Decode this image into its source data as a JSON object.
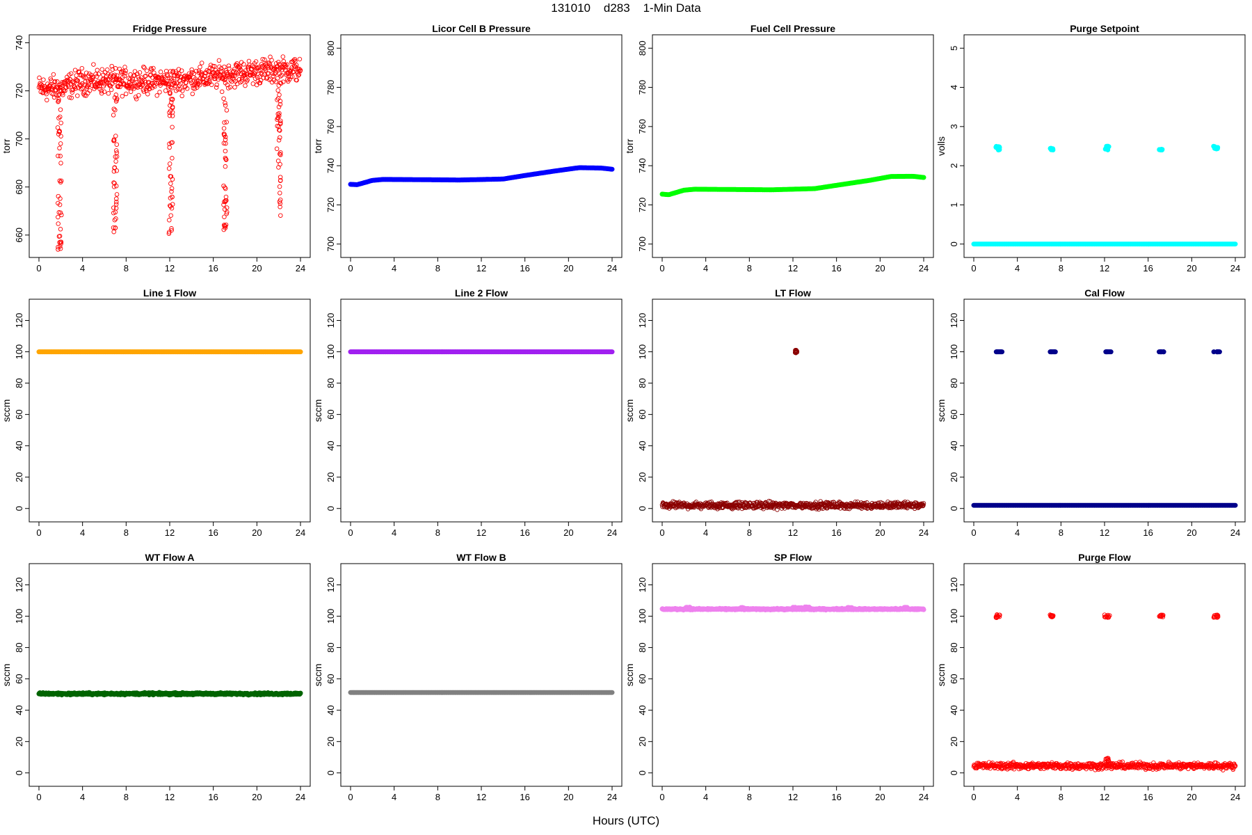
{
  "page": {
    "title": "131010    d283    1-Min Data",
    "xlabel": "Hours (UTC)"
  },
  "chart_data": [
    {
      "type": "scatter",
      "title": "Fridge Pressure",
      "ylabel": "torr",
      "xlabel": "Hours (UTC)",
      "xlim": [
        0,
        24
      ],
      "xticks": [
        0,
        4,
        8,
        12,
        16,
        20,
        24
      ],
      "ylim": [
        653,
        741
      ],
      "yticks": [
        660,
        680,
        700,
        720,
        740
      ],
      "color": "#ff0000",
      "marker": "open-circle",
      "series": [
        {
          "baseline": [
            [
              0,
              721
            ],
            [
              2,
              721
            ],
            [
              4,
              724
            ],
            [
              8,
              724
            ],
            [
              12,
              724
            ],
            [
              16,
              726
            ],
            [
              20,
              728
            ],
            [
              24,
              729
            ]
          ],
          "noise": 5
        }
      ],
      "dips": [
        {
          "x": 1.9,
          "min": 654
        },
        {
          "x": 7.0,
          "min": 659
        },
        {
          "x": 12.1,
          "min": 660
        },
        {
          "x": 17.1,
          "min": 662
        },
        {
          "x": 22.0,
          "min": 665
        }
      ]
    },
    {
      "type": "scatter",
      "title": "Licor Cell B Pressure",
      "ylabel": "torr",
      "xlabel": "Hours (UTC)",
      "xlim": [
        0,
        24
      ],
      "xticks": [
        0,
        4,
        8,
        12,
        16,
        20,
        24
      ],
      "ylim": [
        696,
        804
      ],
      "yticks": [
        700,
        720,
        740,
        760,
        780,
        800
      ],
      "color": "#0000ff",
      "marker": "filled-circle",
      "series": [
        {
          "baseline": [
            [
              0,
              730.5
            ],
            [
              0.6,
              730.3
            ],
            [
              2,
              732.5
            ],
            [
              3,
              733
            ],
            [
              8,
              732.8
            ],
            [
              10,
              732.7
            ],
            [
              14,
              733.2
            ],
            [
              16,
              735
            ],
            [
              19,
              737.5
            ],
            [
              21,
              739
            ],
            [
              23,
              738.8
            ],
            [
              24,
              738.2
            ]
          ],
          "noise": 0
        }
      ]
    },
    {
      "type": "scatter",
      "title": "Fuel Cell Pressure",
      "ylabel": "torr",
      "xlabel": "Hours (UTC)",
      "xlim": [
        0,
        24
      ],
      "xticks": [
        0,
        4,
        8,
        12,
        16,
        20,
        24
      ],
      "ylim": [
        696,
        804
      ],
      "yticks": [
        700,
        720,
        740,
        760,
        780,
        800
      ],
      "color": "#00ff00",
      "marker": "filled-circle",
      "series": [
        {
          "baseline": [
            [
              0,
              725.5
            ],
            [
              0.6,
              725.2
            ],
            [
              2,
              727.5
            ],
            [
              3,
              728
            ],
            [
              8,
              727.8
            ],
            [
              10,
              727.7
            ],
            [
              14,
              728.3
            ],
            [
              16,
              730
            ],
            [
              19,
              732.5
            ],
            [
              21,
              734.5
            ],
            [
              23,
              734.6
            ],
            [
              24,
              734
            ]
          ],
          "noise": 0
        }
      ]
    },
    {
      "type": "scatter",
      "title": "Purge Setpoint",
      "ylabel": "volls",
      "xlabel": "Hours (UTC)",
      "xlim": [
        0,
        24
      ],
      "xticks": [
        0,
        4,
        8,
        12,
        16,
        20,
        24
      ],
      "ylim": [
        -0.2,
        5.2
      ],
      "yticks": [
        0,
        1,
        2,
        3,
        4,
        5
      ],
      "color": "#00ffff",
      "marker": "filled-circle",
      "series": [
        {
          "baseline": [
            [
              0,
              0
            ],
            [
              24,
              0
            ]
          ],
          "noise": 0
        }
      ],
      "clusters": [
        {
          "x0": 2.0,
          "x1": 2.4,
          "y0": 2.4,
          "y1": 2.5
        },
        {
          "x0": 7.0,
          "x1": 7.3,
          "y0": 2.4,
          "y1": 2.45
        },
        {
          "x0": 12.0,
          "x1": 12.4,
          "y0": 2.4,
          "y1": 2.5
        },
        {
          "x0": 17.0,
          "x1": 17.3,
          "y0": 2.4,
          "y1": 2.42
        },
        {
          "x0": 22.0,
          "x1": 22.4,
          "y0": 2.4,
          "y1": 2.5
        }
      ]
    },
    {
      "type": "scatter",
      "title": "Line 1 Flow",
      "ylabel": "sccm",
      "xlabel": "Hours (UTC)",
      "xlim": [
        0,
        24
      ],
      "xticks": [
        0,
        4,
        8,
        12,
        16,
        20,
        24
      ],
      "ylim": [
        -5,
        130
      ],
      "yticks": [
        0,
        20,
        40,
        60,
        80,
        100,
        120
      ],
      "color": "#ffa500",
      "marker": "filled-circle",
      "series": [
        {
          "baseline": [
            [
              0,
              100
            ],
            [
              24,
              100
            ]
          ],
          "noise": 0
        }
      ]
    },
    {
      "type": "scatter",
      "title": "Line 2 Flow",
      "ylabel": "sccm",
      "xlabel": "Hours (UTC)",
      "xlim": [
        0,
        24
      ],
      "xticks": [
        0,
        4,
        8,
        12,
        16,
        20,
        24
      ],
      "ylim": [
        -5,
        130
      ],
      "yticks": [
        0,
        20,
        40,
        60,
        80,
        100,
        120
      ],
      "color": "#a020f0",
      "marker": "filled-circle",
      "series": [
        {
          "baseline": [
            [
              0,
              100
            ],
            [
              24,
              100
            ]
          ],
          "noise": 0
        }
      ]
    },
    {
      "type": "scatter",
      "title": "LT Flow",
      "ylabel": "sccm",
      "xlabel": "Hours (UTC)",
      "xlim": [
        0,
        24
      ],
      "xticks": [
        0,
        4,
        8,
        12,
        16,
        20,
        24
      ],
      "ylim": [
        -5,
        130
      ],
      "yticks": [
        0,
        20,
        40,
        60,
        80,
        100,
        120
      ],
      "color": "#8b0000",
      "marker": "open-circle",
      "series": [
        {
          "baseline": [
            [
              0,
              2
            ],
            [
              24,
              2
            ]
          ],
          "noise": 2
        }
      ],
      "clusters": [
        {
          "x0": 12.2,
          "x1": 12.4,
          "y0": 99,
          "y1": 101
        }
      ]
    },
    {
      "type": "scatter",
      "title": "Cal Flow",
      "ylabel": "sccm",
      "xlabel": "Hours (UTC)",
      "xlim": [
        0,
        24
      ],
      "xticks": [
        0,
        4,
        8,
        12,
        16,
        20,
        24
      ],
      "ylim": [
        -5,
        130
      ],
      "yticks": [
        0,
        20,
        40,
        60,
        80,
        100,
        120
      ],
      "color": "#00008b",
      "marker": "filled-circle",
      "series": [
        {
          "baseline": [
            [
              0,
              2
            ],
            [
              24,
              2
            ]
          ],
          "noise": 0
        }
      ],
      "clusters": [
        {
          "x0": 2.0,
          "x1": 2.6,
          "y0": 100,
          "y1": 100
        },
        {
          "x0": 7.0,
          "x1": 7.5,
          "y0": 100,
          "y1": 100
        },
        {
          "x0": 12.0,
          "x1": 12.6,
          "y0": 100,
          "y1": 100
        },
        {
          "x0": 17.0,
          "x1": 17.5,
          "y0": 100,
          "y1": 100
        },
        {
          "x0": 22.0,
          "x1": 22.6,
          "y0": 100,
          "y1": 100
        }
      ]
    },
    {
      "type": "scatter",
      "title": "WT Flow A",
      "ylabel": "sccm",
      "xlabel": "Hours (UTC)",
      "xlim": [
        0,
        24
      ],
      "xticks": [
        0,
        4,
        8,
        12,
        16,
        20,
        24
      ],
      "ylim": [
        -5,
        130
      ],
      "yticks": [
        0,
        20,
        40,
        60,
        80,
        100,
        120
      ],
      "color": "#006400",
      "marker": "filled-circle",
      "series": [
        {
          "baseline": [
            [
              0,
              50.5
            ],
            [
              24,
              50.5
            ]
          ],
          "noise": 0.6
        }
      ]
    },
    {
      "type": "scatter",
      "title": "WT Flow B",
      "ylabel": "sccm",
      "xlabel": "Hours (UTC)",
      "xlim": [
        0,
        24
      ],
      "xticks": [
        0,
        4,
        8,
        12,
        16,
        20,
        24
      ],
      "ylim": [
        -5,
        130
      ],
      "yticks": [
        0,
        20,
        40,
        60,
        80,
        100,
        120
      ],
      "color": "#808080",
      "marker": "filled-circle",
      "series": [
        {
          "baseline": [
            [
              0,
              51.3
            ],
            [
              24,
              51.3
            ]
          ],
          "noise": 0
        }
      ]
    },
    {
      "type": "scatter",
      "title": "SP Flow",
      "ylabel": "sccm",
      "xlabel": "Hours (UTC)",
      "xlim": [
        0,
        24
      ],
      "xticks": [
        0,
        4,
        8,
        12,
        16,
        20,
        24
      ],
      "ylim": [
        -5,
        130
      ],
      "yticks": [
        0,
        20,
        40,
        60,
        80,
        100,
        120
      ],
      "color": "#ee82ee",
      "marker": "filled-circle",
      "series": [
        {
          "baseline": [
            [
              0,
              104.5
            ],
            [
              24,
              104.5
            ]
          ],
          "noise": 0.4
        }
      ],
      "clusters": [
        {
          "x0": 2.1,
          "x1": 2.6,
          "y0": 105,
          "y1": 105.8
        },
        {
          "x0": 7.2,
          "x1": 7.6,
          "y0": 105,
          "y1": 105.6
        },
        {
          "x0": 12.0,
          "x1": 13.8,
          "y0": 105,
          "y1": 106
        },
        {
          "x0": 17.0,
          "x1": 17.4,
          "y0": 105,
          "y1": 105.6
        },
        {
          "x0": 22.2,
          "x1": 22.7,
          "y0": 105,
          "y1": 105.8
        }
      ]
    },
    {
      "type": "scatter",
      "title": "Purge Flow",
      "ylabel": "sccm",
      "xlabel": "Hours (UTC)",
      "xlim": [
        0,
        24
      ],
      "xticks": [
        0,
        4,
        8,
        12,
        16,
        20,
        24
      ],
      "ylim": [
        -5,
        130
      ],
      "yticks": [
        0,
        20,
        40,
        60,
        80,
        100,
        120
      ],
      "color": "#ff0000",
      "marker": "open-circle",
      "series": [
        {
          "baseline": [
            [
              0,
              4.5
            ],
            [
              24,
              4.5
            ]
          ],
          "noise": 2
        }
      ],
      "clusters": [
        {
          "x0": 2.0,
          "x1": 2.4,
          "y0": 99,
          "y1": 101
        },
        {
          "x0": 7.0,
          "x1": 7.3,
          "y0": 99.5,
          "y1": 101
        },
        {
          "x0": 12.0,
          "x1": 12.5,
          "y0": 99,
          "y1": 101
        },
        {
          "x0": 17.0,
          "x1": 17.4,
          "y0": 99.5,
          "y1": 101
        },
        {
          "x0": 22.0,
          "x1": 22.5,
          "y0": 99,
          "y1": 101
        },
        {
          "x0": 12.1,
          "x1": 12.4,
          "y0": 6,
          "y1": 10
        }
      ]
    }
  ]
}
